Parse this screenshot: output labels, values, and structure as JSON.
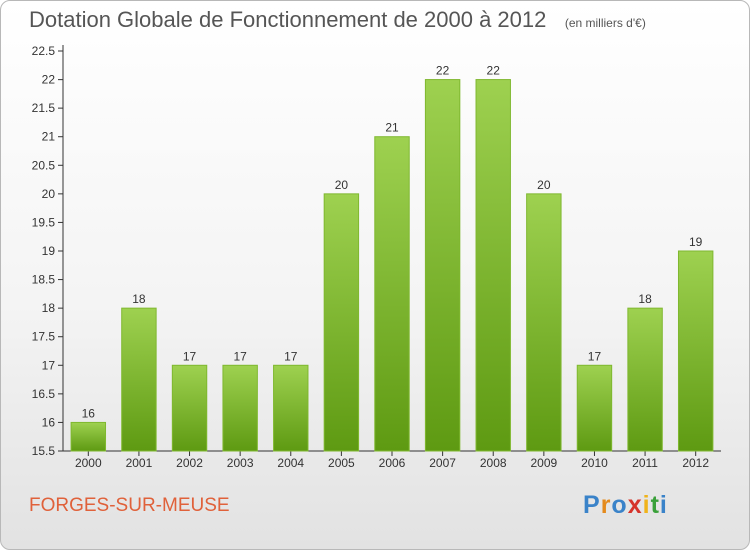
{
  "chart_data": {
    "type": "bar",
    "title": "Dotation Globale de Fonctionnement de 2000 à 2012",
    "unit_label": "(en milliers d'€)",
    "categories": [
      "2000",
      "2001",
      "2002",
      "2003",
      "2004",
      "2005",
      "2006",
      "2007",
      "2008",
      "2009",
      "2010",
      "2011",
      "2012"
    ],
    "values": [
      16,
      18,
      17,
      17,
      17,
      20,
      21,
      22,
      22,
      20,
      17,
      18,
      19
    ],
    "value_labels": [
      "16",
      "18",
      "17",
      "17",
      "17",
      "20",
      "21",
      "22",
      "22",
      "20",
      "17",
      "18",
      "19"
    ],
    "ylim": [
      15.5,
      22.5
    ],
    "yticks": [
      "15.5",
      "16",
      "16.5",
      "17",
      "17.5",
      "18",
      "18.5",
      "19",
      "19.5",
      "20",
      "20.5",
      "21",
      "21.5",
      "22",
      "22.5"
    ],
    "grid": false,
    "xlabel": "",
    "ylabel": "",
    "colors": {
      "bar_top": "#9ed150",
      "bar_bottom": "#5e9a12",
      "bar_edge": "#7fb82f"
    }
  },
  "footer": {
    "commune": "FORGES-SUR-MEUSE",
    "logo_letters": [
      "P",
      "r",
      "o",
      "x",
      "i",
      "t",
      "i"
    ],
    "logo_colors": [
      "#3a83c9",
      "#e48a1c",
      "#3a83c9",
      "#d6342b",
      "#f0b31a",
      "#3aa13a",
      "#3a83c9"
    ]
  }
}
